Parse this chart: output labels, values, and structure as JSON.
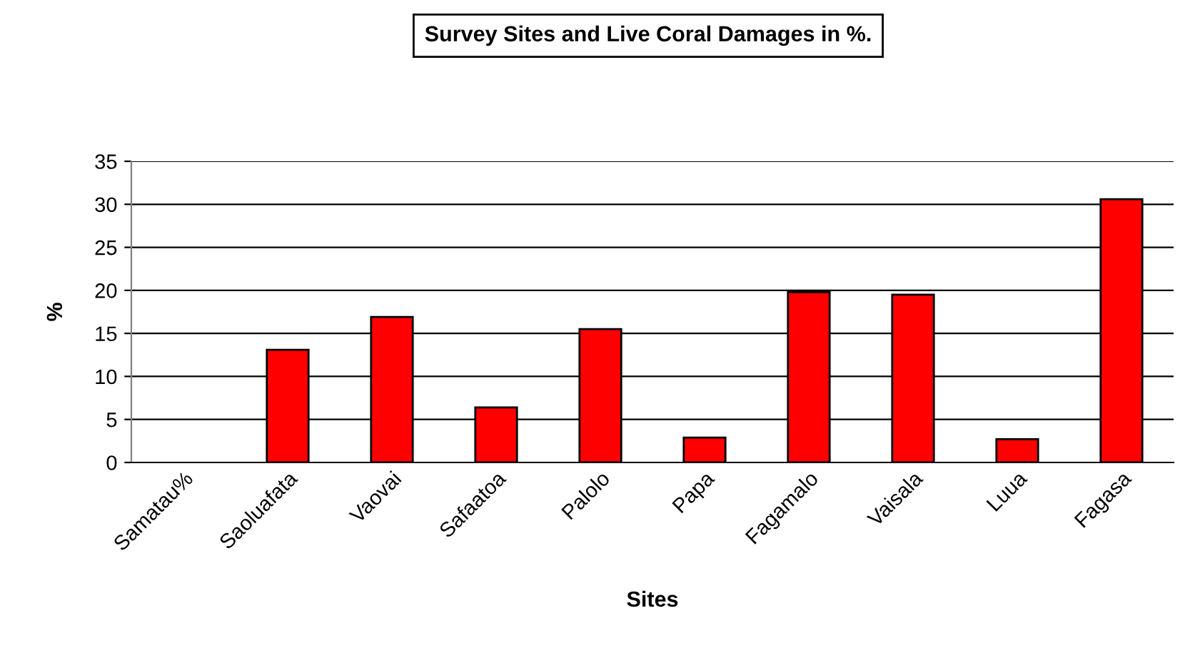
{
  "chart_data": {
    "type": "bar",
    "title": "Survey Sites and Live Coral Damages in %.",
    "xlabel": "Sites",
    "ylabel": "%",
    "categories": [
      "Samatau%",
      "Saoluafata",
      "Vaovai",
      "Safaatoa",
      "Palolo",
      "Papa",
      "Fagamalo",
      "Vaisala",
      "Luua",
      "Fagasa"
    ],
    "values": [
      null,
      13.1,
      16.9,
      6.4,
      15.5,
      2.9,
      19.8,
      19.5,
      2.7,
      30.6
    ],
    "color": "#ff0000",
    "ylim": [
      0,
      35
    ],
    "yticks": [
      0,
      5,
      10,
      15,
      20,
      25,
      30,
      35
    ],
    "grid": "y"
  }
}
